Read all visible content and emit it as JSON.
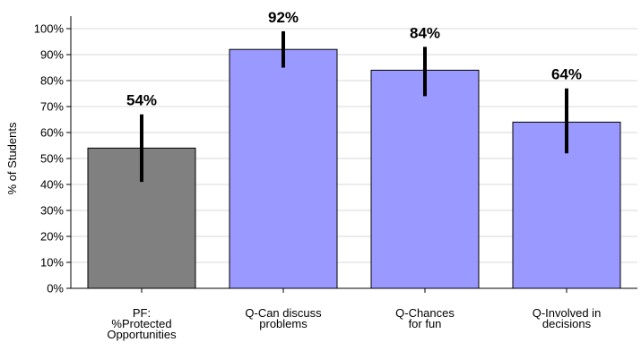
{
  "chart_data": {
    "type": "bar",
    "categories": [
      [
        "PF:",
        "%Protected",
        "Opportunities"
      ],
      [
        "Q-Can discuss",
        "problems"
      ],
      [
        "Q-Chances",
        "for fun"
      ],
      [
        "Q-Involved in",
        "decisions"
      ]
    ],
    "values": [
      54,
      92,
      84,
      64
    ],
    "data_labels": [
      "54%",
      "92%",
      "84%",
      "64%"
    ],
    "error_bars": [
      [
        41,
        67
      ],
      [
        85,
        99
      ],
      [
        74,
        93
      ],
      [
        52,
        77
      ]
    ],
    "bar_colors": [
      "#808080",
      "#9999ff",
      "#9999ff",
      "#9999ff"
    ],
    "ylabel": "% of Students",
    "ylim": [
      0,
      100
    ],
    "yticks": [
      "0%",
      "10%",
      "20%",
      "30%",
      "40%",
      "50%",
      "60%",
      "70%",
      "80%",
      "90%",
      "100%"
    ],
    "grid": true
  }
}
